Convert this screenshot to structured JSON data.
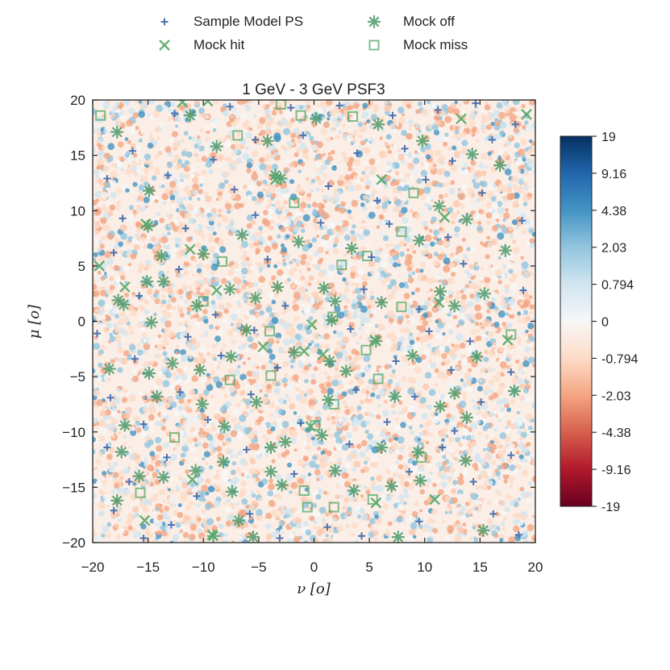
{
  "chart_data": {
    "type": "scatter",
    "title": "1 GeV - 3 GeV PSF3",
    "xlabel": "ν [o]",
    "ylabel": "μ [o]",
    "xlim": [
      -20,
      20
    ],
    "ylim": [
      -20,
      20
    ],
    "x_ticks": [
      -20,
      -15,
      -10,
      -5,
      0,
      5,
      10,
      15,
      20
    ],
    "y_ticks": [
      -20,
      -15,
      -10,
      -5,
      0,
      5,
      10,
      15,
      20
    ],
    "x_tick_labels": [
      "−20",
      "−15",
      "−10",
      "−5",
      "0",
      "5",
      "10",
      "15",
      "20"
    ],
    "y_tick_labels": [
      "−20",
      "−15",
      "−10",
      "−5",
      "0",
      "5",
      "10",
      "15",
      "20"
    ],
    "grid": false,
    "legend_position": "top-center",
    "legend": [
      {
        "label": "Sample Model PS",
        "marker": "plus",
        "color": "#4c72b0"
      },
      {
        "label": "Mock off",
        "marker": "star",
        "color": "#55a868"
      },
      {
        "label": "Mock hit",
        "marker": "x",
        "color": "#55a868"
      },
      {
        "label": "Mock miss",
        "marker": "square",
        "color": "#55a868"
      }
    ],
    "colorbar": {
      "colormap": "RdBu",
      "tick_labels": [
        "19",
        "9.16",
        "4.38",
        "2.03",
        "0.794",
        "0",
        "-0.794",
        "-2.03",
        "-4.38",
        "-9.16",
        "-19"
      ]
    },
    "series": [
      {
        "name": "Mock miss",
        "marker": "square",
        "points": [
          [
            -19.3,
            18.6
          ],
          [
            -3,
            19.6
          ],
          [
            -1.2,
            18.6
          ],
          [
            3.5,
            18.5
          ],
          [
            -6.9,
            16.8
          ],
          [
            -1.8,
            10.7
          ],
          [
            9,
            11.6
          ],
          [
            7.9,
            8.1
          ],
          [
            4.8,
            5.9
          ],
          [
            2.5,
            5.1
          ],
          [
            -8.3,
            5.4
          ],
          [
            -10,
            1.8
          ],
          [
            7.9,
            1.3
          ],
          [
            1.7,
            0.4
          ],
          [
            -4,
            -0.9
          ],
          [
            4.7,
            -2.6
          ],
          [
            17.8,
            -1.2
          ],
          [
            -7.6,
            -5.3
          ],
          [
            -3.9,
            -4.9
          ],
          [
            5.8,
            -5.2
          ],
          [
            1.8,
            -7.5
          ],
          [
            0.1,
            -9.4
          ],
          [
            -12.6,
            -10.5
          ],
          [
            9.7,
            -12.3
          ],
          [
            -15.7,
            -15.5
          ],
          [
            -0.9,
            -15.3
          ],
          [
            5.3,
            -16.1
          ],
          [
            -0.6,
            -16.8
          ],
          [
            1.8,
            -16.8
          ]
        ]
      },
      {
        "name": "Mock off",
        "marker": "star",
        "points": [
          [
            -17.8,
            17.1
          ],
          [
            -11.2,
            18.6
          ],
          [
            -8.8,
            15.8
          ],
          [
            -4.2,
            16.3
          ],
          [
            0.2,
            18.3
          ],
          [
            5.8,
            17.8
          ],
          [
            9.8,
            16.3
          ],
          [
            14.3,
            15.1
          ],
          [
            16.8,
            14.1
          ],
          [
            -14.9,
            11.8
          ],
          [
            -3.5,
            13.2
          ],
          [
            -3,
            12.9
          ],
          [
            11.3,
            10.4
          ],
          [
            13.8,
            9.2
          ],
          [
            -15,
            8.6
          ],
          [
            -13.8,
            5.9
          ],
          [
            -10,
            6.1
          ],
          [
            -6.5,
            7.8
          ],
          [
            -1.4,
            7.2
          ],
          [
            3.4,
            6.6
          ],
          [
            9.5,
            7.3
          ],
          [
            17.3,
            6.4
          ],
          [
            -15.1,
            3.6
          ],
          [
            -13.6,
            3.6
          ],
          [
            -7.6,
            2.9
          ],
          [
            -3.3,
            3.1
          ],
          [
            0.9,
            3
          ],
          [
            11.4,
            2.7
          ],
          [
            15.4,
            2.5
          ],
          [
            -17.7,
            1.9
          ],
          [
            -17.2,
            1.5
          ],
          [
            -10.6,
            1.4
          ],
          [
            -5.3,
            2.1
          ],
          [
            1.9,
            1.8
          ],
          [
            6.1,
            1.7
          ],
          [
            12.7,
            1.4
          ],
          [
            -14.7,
            -0.1
          ],
          [
            -6.1,
            -0.8
          ],
          [
            1.6,
            0.1
          ],
          [
            5.6,
            -1.8
          ],
          [
            -12.8,
            -3.8
          ],
          [
            -7.5,
            -3.2
          ],
          [
            -1.8,
            -2.8
          ],
          [
            1.4,
            -3.6
          ],
          [
            8.9,
            -3.1
          ],
          [
            14.7,
            -3.2
          ],
          [
            -18.5,
            -4.3
          ],
          [
            -14.9,
            -4.7
          ],
          [
            -10.3,
            -4.4
          ],
          [
            -5.2,
            -7.3
          ],
          [
            2.9,
            -4.5
          ],
          [
            7.3,
            -6.8
          ],
          [
            12.7,
            -6.5
          ],
          [
            -14.2,
            -6.8
          ],
          [
            -10.1,
            -7.5
          ],
          [
            1.3,
            -7.1
          ],
          [
            11.4,
            -7.7
          ],
          [
            18.1,
            -6.3
          ],
          [
            -17.1,
            -9.4
          ],
          [
            -8.1,
            -9.5
          ],
          [
            0.7,
            -10.3
          ],
          [
            6.1,
            -11.4
          ],
          [
            13.8,
            -8.7
          ],
          [
            -17.4,
            -11.8
          ],
          [
            -3.9,
            -11.4
          ],
          [
            -2.6,
            -10.9
          ],
          [
            9.4,
            -11.8
          ],
          [
            -15.8,
            -14
          ],
          [
            -10.7,
            -13.5
          ],
          [
            -8.2,
            -12.7
          ],
          [
            -3.9,
            -13.6
          ],
          [
            1.9,
            -13.5
          ],
          [
            9.6,
            -14.4
          ],
          [
            13.7,
            -12.6
          ],
          [
            -13.6,
            -14.1
          ],
          [
            -7.4,
            -15.4
          ],
          [
            -2.9,
            -14.8
          ],
          [
            3.6,
            -15.3
          ],
          [
            7,
            -14.9
          ],
          [
            -17.8,
            -16.2
          ],
          [
            -6.8,
            -18
          ],
          [
            -5.5,
            -19.5
          ],
          [
            -9.1,
            -19.4
          ],
          [
            7.6,
            -19.5
          ],
          [
            15.3,
            -18.9
          ]
        ]
      },
      {
        "name": "Mock hit",
        "marker": "x",
        "points": [
          [
            -11.9,
            19.8
          ],
          [
            -9.6,
            19.9
          ],
          [
            -3.5,
            12.8
          ],
          [
            13.3,
            18.3
          ],
          [
            19.2,
            18.7
          ],
          [
            -19.4,
            5
          ],
          [
            -15.2,
            8.8
          ],
          [
            -11.2,
            6.5
          ],
          [
            6.1,
            12.8
          ],
          [
            11.8,
            9.4
          ],
          [
            -17.1,
            3.1
          ],
          [
            -8.8,
            2.8
          ],
          [
            -0.2,
            -0.3
          ],
          [
            11.3,
            1.7
          ],
          [
            -4.6,
            -2.3
          ],
          [
            -0.9,
            -2.7
          ],
          [
            0.8,
            -3
          ],
          [
            5.5,
            -1.7
          ],
          [
            17.5,
            -1.7
          ],
          [
            -0.3,
            -9.5
          ],
          [
            -11,
            -14.3
          ],
          [
            -15.3,
            -18
          ],
          [
            -9.2,
            -19.3
          ],
          [
            5.6,
            -16.4
          ],
          [
            10.9,
            -16.1
          ]
        ]
      },
      {
        "name": "Sample Model PS",
        "marker": "plus",
        "points": [
          [
            -12.6,
            18.8
          ],
          [
            -7.6,
            19.4
          ],
          [
            -2.1,
            19.3
          ],
          [
            2.3,
            19.5
          ],
          [
            7.1,
            18.6
          ],
          [
            11.2,
            19.1
          ],
          [
            14.6,
            19.7
          ],
          [
            18.2,
            17.8
          ],
          [
            -16.4,
            15.4
          ],
          [
            -9.1,
            14.6
          ],
          [
            -5.3,
            16.4
          ],
          [
            -1,
            16.8
          ],
          [
            3.9,
            15.2
          ],
          [
            8.2,
            15.6
          ],
          [
            12.5,
            14.5
          ],
          [
            16.1,
            16.4
          ],
          [
            -18.7,
            12.9
          ],
          [
            -13.2,
            13.2
          ],
          [
            -7.2,
            11.9
          ],
          [
            1.3,
            12.2
          ],
          [
            5.7,
            10.9
          ],
          [
            10.1,
            12.8
          ],
          [
            15.2,
            11.6
          ],
          [
            -17.3,
            9.3
          ],
          [
            -11.6,
            8.4
          ],
          [
            -5.3,
            9.6
          ],
          [
            0.6,
            8.9
          ],
          [
            6.8,
            8.8
          ],
          [
            12.1,
            7.6
          ],
          [
            18.8,
            9.1
          ],
          [
            -18.1,
            6.2
          ],
          [
            -12.2,
            4.7
          ],
          [
            -4.2,
            5.6
          ],
          [
            5.2,
            5.8
          ],
          [
            13.5,
            5.2
          ],
          [
            -15.8,
            2.3
          ],
          [
            -8.9,
            0.6
          ],
          [
            -2.6,
            1.4
          ],
          [
            4.5,
            2.9
          ],
          [
            9.5,
            1.1
          ],
          [
            18.9,
            2.8
          ],
          [
            -19.6,
            -1.1
          ],
          [
            -11.4,
            -1.4
          ],
          [
            -5.4,
            -0.8
          ],
          [
            3.3,
            -0.7
          ],
          [
            10.4,
            -0.9
          ],
          [
            14.1,
            -1.8
          ],
          [
            -16.2,
            -3.4
          ],
          [
            -8.4,
            -3.1
          ],
          [
            -3.3,
            -4.2
          ],
          [
            7.4,
            -3.6
          ],
          [
            12.4,
            -4.4
          ],
          [
            17.8,
            -4.6
          ],
          [
            -18.4,
            -6.9
          ],
          [
            -12.1,
            -6.4
          ],
          [
            -5.7,
            -6.6
          ],
          [
            3.8,
            -6.2
          ],
          [
            9.1,
            -6.8
          ],
          [
            15.1,
            -7.3
          ],
          [
            -15.4,
            -9.3
          ],
          [
            -9.6,
            -8.9
          ],
          [
            -1.2,
            -9.2
          ],
          [
            6.6,
            -9.1
          ],
          [
            12.7,
            -9.9
          ],
          [
            -18.7,
            -11.4
          ],
          [
            -13.3,
            -12.3
          ],
          [
            -6.1,
            -11.6
          ],
          [
            3.2,
            -11.1
          ],
          [
            11.6,
            -11.4
          ],
          [
            17.8,
            -12.1
          ],
          [
            -16.7,
            -14.5
          ],
          [
            -10.6,
            -15.8
          ],
          [
            -1.8,
            -13.8
          ],
          [
            8.6,
            -13.6
          ],
          [
            14.4,
            -14.5
          ],
          [
            -18.1,
            -17.1
          ],
          [
            -12.9,
            -18.4
          ],
          [
            -5.8,
            -17.4
          ],
          [
            1.2,
            -18.6
          ],
          [
            9.5,
            -18.1
          ],
          [
            16.2,
            -17.4
          ],
          [
            -15.4,
            -19.6
          ],
          [
            -3.1,
            -19.6
          ],
          [
            4.3,
            -19.4
          ],
          [
            18.5,
            -19.3
          ]
        ]
      }
    ]
  }
}
